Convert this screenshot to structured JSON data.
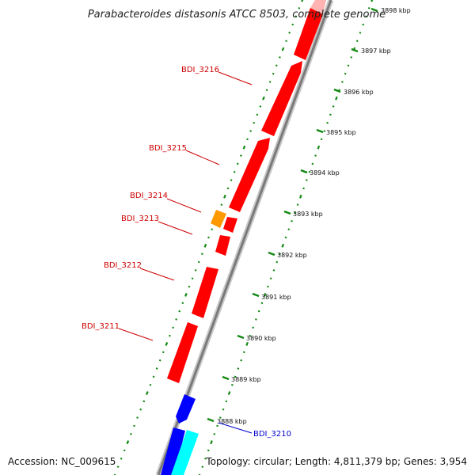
{
  "title": "Parabacteroides distasonis ATCC 8503, complete genome",
  "accession": "Accession: NC_009615",
  "topology": "Topology: circular; Length: 4,811,379 bp; Genes: 3,954",
  "colors": {
    "forward_gene": "#ff0000",
    "forward_gene_alt": "#ff8c00",
    "reverse_gene": "#0000ff",
    "reverse_gene_alt": "#00ffff",
    "backbone": "#888888",
    "ticks": "#118811",
    "label_forward": "#cc0000",
    "label_reverse": "#0000cc"
  },
  "scale_ticks": [
    {
      "label": "3898 kbp"
    },
    {
      "label": "3897 kbp"
    },
    {
      "label": "3896 kbp"
    },
    {
      "label": "3895 kbp"
    },
    {
      "label": "3894 kbp"
    },
    {
      "label": "3893 kbp"
    },
    {
      "label": "3892 kbp"
    },
    {
      "label": "3891 kbp"
    },
    {
      "label": "3890 kbp"
    },
    {
      "label": "3889 kbp"
    },
    {
      "label": "3888 kbp"
    }
  ],
  "gene_labels": [
    {
      "text": "BDI_3216",
      "strand": "forward"
    },
    {
      "text": "BDI_3215",
      "strand": "forward"
    },
    {
      "text": "BDI_3214",
      "strand": "forward"
    },
    {
      "text": "BDI_3213",
      "strand": "forward"
    },
    {
      "text": "BDI_3212",
      "strand": "forward"
    },
    {
      "text": "BDI_3211",
      "strand": "forward"
    },
    {
      "text": "BDI_3210",
      "strand": "reverse"
    }
  ]
}
